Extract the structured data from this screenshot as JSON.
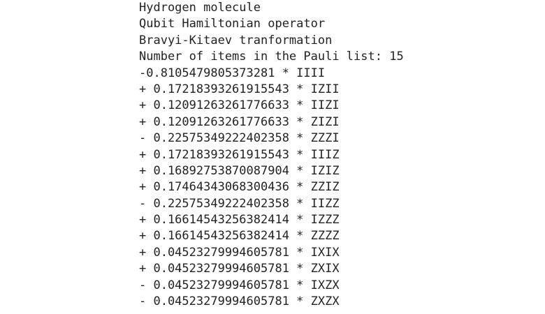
{
  "lines": [
    "Hydrogen molecule",
    "Qubit Hamiltonian operator",
    "Bravyi-Kitaev tranformation",
    "Number of items in the Pauli list: 15",
    "-0.8105479805373281 * IIII",
    "+ 0.17218393261915543 * IZII",
    "+ 0.12091263261776633 * IIZI",
    "+ 0.12091263261776633 * ZIZI",
    "- 0.22575349222402358 * ZZZI",
    "+ 0.17218393261915543 * IIIZ",
    "+ 0.16892753870087904 * IZIZ",
    "+ 0.17464343068300436 * ZZIZ",
    "- 0.22575349222402358 * IIZZ",
    "+ 0.16614543256382414 * IZZZ",
    "+ 0.16614543256382414 * ZZZZ",
    "+ 0.04523279994605781 * IXIX",
    "+ 0.04523279994605781 * ZXIX",
    "- 0.04523279994605781 * IXZX",
    "- 0.04523279994605781 * ZXZX"
  ]
}
